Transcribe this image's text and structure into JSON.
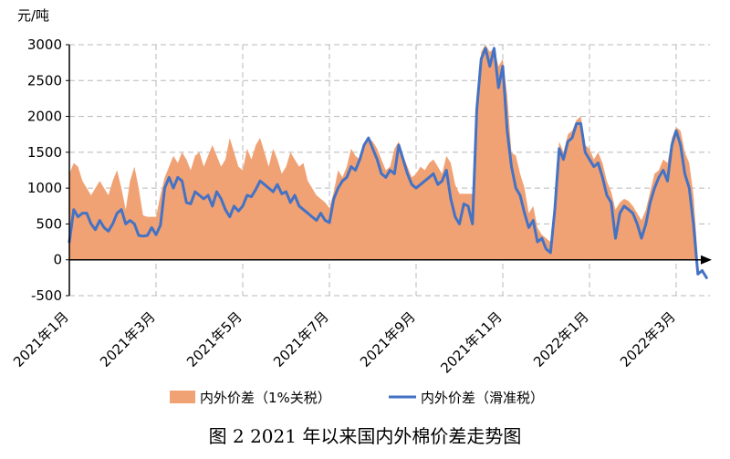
{
  "caption": "图 2 2021 年以来国内外棉价差走势图",
  "chart_data": {
    "type": "area",
    "title": "",
    "ylabel_unit": "元/吨",
    "ylim": [
      -500,
      3000
    ],
    "yticks": [
      -500,
      0,
      500,
      1000,
      1500,
      2000,
      2500,
      3000
    ],
    "grid": true,
    "legend_position": "bottom",
    "x_tick_labels": [
      "2021年1月",
      "2021年3月",
      "2021年5月",
      "2021年7月",
      "2021年9月",
      "2021年11月",
      "2022年1月",
      "2022年3月"
    ],
    "x_tick_months": [
      0,
      2,
      4,
      6,
      8,
      10,
      12,
      14
    ],
    "x_unit": "months since 2021年1月",
    "series": [
      {
        "name": "内外价差（1%关税）",
        "type": "area",
        "color": "#F0A274",
        "points": [
          [
            0.0,
            1200
          ],
          [
            0.1,
            1350
          ],
          [
            0.2,
            1300
          ],
          [
            0.3,
            1100
          ],
          [
            0.4,
            1000
          ],
          [
            0.5,
            900
          ],
          [
            0.6,
            1000
          ],
          [
            0.7,
            1100
          ],
          [
            0.8,
            1000
          ],
          [
            0.9,
            900
          ],
          [
            1.0,
            1100
          ],
          [
            1.1,
            1250
          ],
          [
            1.2,
            1000
          ],
          [
            1.3,
            700
          ],
          [
            1.4,
            1100
          ],
          [
            1.5,
            1300
          ],
          [
            1.6,
            1000
          ],
          [
            1.7,
            620
          ],
          [
            1.8,
            600
          ],
          [
            1.9,
            600
          ],
          [
            2.0,
            600
          ],
          [
            2.1,
            900
          ],
          [
            2.2,
            1150
          ],
          [
            2.3,
            1300
          ],
          [
            2.4,
            1450
          ],
          [
            2.5,
            1350
          ],
          [
            2.6,
            1500
          ],
          [
            2.7,
            1400
          ],
          [
            2.8,
            1250
          ],
          [
            2.9,
            1450
          ],
          [
            3.0,
            1500
          ],
          [
            3.1,
            1300
          ],
          [
            3.2,
            1450
          ],
          [
            3.3,
            1600
          ],
          [
            3.4,
            1450
          ],
          [
            3.5,
            1300
          ],
          [
            3.6,
            1400
          ],
          [
            3.7,
            1700
          ],
          [
            3.8,
            1500
          ],
          [
            3.9,
            1300
          ],
          [
            4.0,
            1250
          ],
          [
            4.1,
            1550
          ],
          [
            4.2,
            1400
          ],
          [
            4.3,
            1600
          ],
          [
            4.4,
            1700
          ],
          [
            4.5,
            1500
          ],
          [
            4.6,
            1300
          ],
          [
            4.7,
            1550
          ],
          [
            4.8,
            1400
          ],
          [
            4.9,
            1200
          ],
          [
            5.0,
            1300
          ],
          [
            5.1,
            1500
          ],
          [
            5.2,
            1400
          ],
          [
            5.3,
            1300
          ],
          [
            5.4,
            1350
          ],
          [
            5.5,
            1100
          ],
          [
            5.6,
            1000
          ],
          [
            5.7,
            900
          ],
          [
            5.8,
            850
          ],
          [
            5.9,
            800
          ],
          [
            6.0,
            720
          ],
          [
            6.1,
            950
          ],
          [
            6.2,
            1250
          ],
          [
            6.3,
            1150
          ],
          [
            6.4,
            1300
          ],
          [
            6.5,
            1550
          ],
          [
            6.6,
            1450
          ],
          [
            6.7,
            1400
          ],
          [
            6.8,
            1550
          ],
          [
            6.9,
            1700
          ],
          [
            7.0,
            1650
          ],
          [
            7.1,
            1550
          ],
          [
            7.2,
            1400
          ],
          [
            7.3,
            1250
          ],
          [
            7.4,
            1300
          ],
          [
            7.5,
            1550
          ],
          [
            7.6,
            1650
          ],
          [
            7.7,
            1450
          ],
          [
            7.8,
            1300
          ],
          [
            7.9,
            1150
          ],
          [
            8.0,
            1200
          ],
          [
            8.1,
            1300
          ],
          [
            8.2,
            1250
          ],
          [
            8.3,
            1350
          ],
          [
            8.4,
            1400
          ],
          [
            8.5,
            1300
          ],
          [
            8.6,
            1200
          ],
          [
            8.7,
            1450
          ],
          [
            8.8,
            1350
          ],
          [
            8.9,
            1050
          ],
          [
            9.0,
            920
          ],
          [
            9.1,
            920
          ],
          [
            9.2,
            920
          ],
          [
            9.3,
            920
          ],
          [
            9.4,
            2200
          ],
          [
            9.5,
            2900
          ],
          [
            9.6,
            3000
          ],
          [
            9.7,
            2900
          ],
          [
            9.8,
            2950
          ],
          [
            9.9,
            2700
          ],
          [
            10.0,
            2800
          ],
          [
            10.1,
            2300
          ],
          [
            10.2,
            1500
          ],
          [
            10.3,
            1450
          ],
          [
            10.4,
            1200
          ],
          [
            10.5,
            1000
          ],
          [
            10.6,
            650
          ],
          [
            10.7,
            750
          ],
          [
            10.8,
            450
          ],
          [
            10.9,
            350
          ],
          [
            11.0,
            300
          ],
          [
            11.1,
            250
          ],
          [
            11.2,
            850
          ],
          [
            11.3,
            1650
          ],
          [
            11.4,
            1500
          ],
          [
            11.5,
            1750
          ],
          [
            11.6,
            1800
          ],
          [
            11.7,
            1950
          ],
          [
            11.8,
            2000
          ],
          [
            11.9,
            1600
          ],
          [
            12.0,
            1550
          ],
          [
            12.1,
            1400
          ],
          [
            12.2,
            1500
          ],
          [
            12.3,
            1350
          ],
          [
            12.4,
            1100
          ],
          [
            12.5,
            950
          ],
          [
            12.6,
            700
          ],
          [
            12.7,
            800
          ],
          [
            12.8,
            850
          ],
          [
            12.9,
            820
          ],
          [
            13.0,
            750
          ],
          [
            13.1,
            650
          ],
          [
            13.2,
            550
          ],
          [
            13.3,
            700
          ],
          [
            13.4,
            950
          ],
          [
            13.5,
            1200
          ],
          [
            13.6,
            1250
          ],
          [
            13.7,
            1400
          ],
          [
            13.8,
            1350
          ],
          [
            13.9,
            1700
          ],
          [
            14.0,
            1850
          ],
          [
            14.1,
            1800
          ],
          [
            14.2,
            1500
          ],
          [
            14.3,
            1350
          ],
          [
            14.4,
            900
          ],
          [
            14.5,
            0
          ]
        ]
      },
      {
        "name": "内外价差（滑准税）",
        "type": "line",
        "color": "#4472C4",
        "points": [
          [
            0.0,
            250
          ],
          [
            0.1,
            700
          ],
          [
            0.2,
            600
          ],
          [
            0.3,
            650
          ],
          [
            0.4,
            650
          ],
          [
            0.5,
            500
          ],
          [
            0.6,
            420
          ],
          [
            0.7,
            550
          ],
          [
            0.8,
            450
          ],
          [
            0.9,
            400
          ],
          [
            1.0,
            500
          ],
          [
            1.1,
            650
          ],
          [
            1.2,
            700
          ],
          [
            1.3,
            500
          ],
          [
            1.4,
            550
          ],
          [
            1.5,
            500
          ],
          [
            1.6,
            340
          ],
          [
            1.7,
            330
          ],
          [
            1.8,
            340
          ],
          [
            1.9,
            450
          ],
          [
            2.0,
            350
          ],
          [
            2.1,
            480
          ],
          [
            2.2,
            1000
          ],
          [
            2.3,
            1150
          ],
          [
            2.4,
            1000
          ],
          [
            2.5,
            1150
          ],
          [
            2.6,
            1100
          ],
          [
            2.7,
            800
          ],
          [
            2.8,
            780
          ],
          [
            2.9,
            950
          ],
          [
            3.0,
            900
          ],
          [
            3.1,
            850
          ],
          [
            3.2,
            900
          ],
          [
            3.3,
            750
          ],
          [
            3.4,
            950
          ],
          [
            3.5,
            850
          ],
          [
            3.6,
            700
          ],
          [
            3.7,
            600
          ],
          [
            3.8,
            750
          ],
          [
            3.9,
            680
          ],
          [
            4.0,
            750
          ],
          [
            4.1,
            900
          ],
          [
            4.2,
            880
          ],
          [
            4.3,
            980
          ],
          [
            4.4,
            1100
          ],
          [
            4.5,
            1050
          ],
          [
            4.6,
            1000
          ],
          [
            4.7,
            950
          ],
          [
            4.8,
            1050
          ],
          [
            4.9,
            920
          ],
          [
            5.0,
            950
          ],
          [
            5.1,
            800
          ],
          [
            5.2,
            900
          ],
          [
            5.3,
            750
          ],
          [
            5.4,
            700
          ],
          [
            5.5,
            650
          ],
          [
            5.6,
            600
          ],
          [
            5.7,
            550
          ],
          [
            5.8,
            650
          ],
          [
            5.9,
            550
          ],
          [
            6.0,
            520
          ],
          [
            6.1,
            850
          ],
          [
            6.2,
            1000
          ],
          [
            6.3,
            1100
          ],
          [
            6.4,
            1150
          ],
          [
            6.5,
            1300
          ],
          [
            6.6,
            1250
          ],
          [
            6.7,
            1400
          ],
          [
            6.8,
            1600
          ],
          [
            6.9,
            1700
          ],
          [
            7.0,
            1550
          ],
          [
            7.1,
            1400
          ],
          [
            7.2,
            1200
          ],
          [
            7.3,
            1150
          ],
          [
            7.4,
            1250
          ],
          [
            7.5,
            1200
          ],
          [
            7.6,
            1600
          ],
          [
            7.7,
            1400
          ],
          [
            7.8,
            1200
          ],
          [
            7.9,
            1050
          ],
          [
            8.0,
            1000
          ],
          [
            8.1,
            1050
          ],
          [
            8.2,
            1100
          ],
          [
            8.3,
            1150
          ],
          [
            8.4,
            1200
          ],
          [
            8.5,
            1050
          ],
          [
            8.6,
            1100
          ],
          [
            8.7,
            1250
          ],
          [
            8.8,
            850
          ],
          [
            8.9,
            600
          ],
          [
            9.0,
            500
          ],
          [
            9.1,
            780
          ],
          [
            9.2,
            750
          ],
          [
            9.3,
            500
          ],
          [
            9.4,
            2100
          ],
          [
            9.5,
            2800
          ],
          [
            9.6,
            2950
          ],
          [
            9.7,
            2700
          ],
          [
            9.8,
            2950
          ],
          [
            9.9,
            2400
          ],
          [
            10.0,
            2700
          ],
          [
            10.1,
            1800
          ],
          [
            10.2,
            1300
          ],
          [
            10.3,
            1000
          ],
          [
            10.4,
            900
          ],
          [
            10.5,
            650
          ],
          [
            10.6,
            450
          ],
          [
            10.7,
            550
          ],
          [
            10.8,
            250
          ],
          [
            10.9,
            300
          ],
          [
            11.0,
            150
          ],
          [
            11.1,
            100
          ],
          [
            11.2,
            700
          ],
          [
            11.3,
            1550
          ],
          [
            11.4,
            1400
          ],
          [
            11.5,
            1650
          ],
          [
            11.6,
            1700
          ],
          [
            11.7,
            1900
          ],
          [
            11.8,
            1900
          ],
          [
            11.9,
            1500
          ],
          [
            12.0,
            1400
          ],
          [
            12.1,
            1300
          ],
          [
            12.2,
            1350
          ],
          [
            12.3,
            1150
          ],
          [
            12.4,
            900
          ],
          [
            12.5,
            800
          ],
          [
            12.6,
            300
          ],
          [
            12.7,
            650
          ],
          [
            12.8,
            750
          ],
          [
            12.9,
            700
          ],
          [
            13.0,
            650
          ],
          [
            13.1,
            500
          ],
          [
            13.2,
            300
          ],
          [
            13.3,
            500
          ],
          [
            13.4,
            800
          ],
          [
            13.5,
            1000
          ],
          [
            13.6,
            1150
          ],
          [
            13.7,
            1250
          ],
          [
            13.8,
            1100
          ],
          [
            13.9,
            1600
          ],
          [
            14.0,
            1800
          ],
          [
            14.1,
            1600
          ],
          [
            14.2,
            1200
          ],
          [
            14.3,
            1000
          ],
          [
            14.4,
            500
          ],
          [
            14.5,
            -200
          ],
          [
            14.6,
            -150
          ],
          [
            14.7,
            -250
          ]
        ]
      }
    ]
  }
}
